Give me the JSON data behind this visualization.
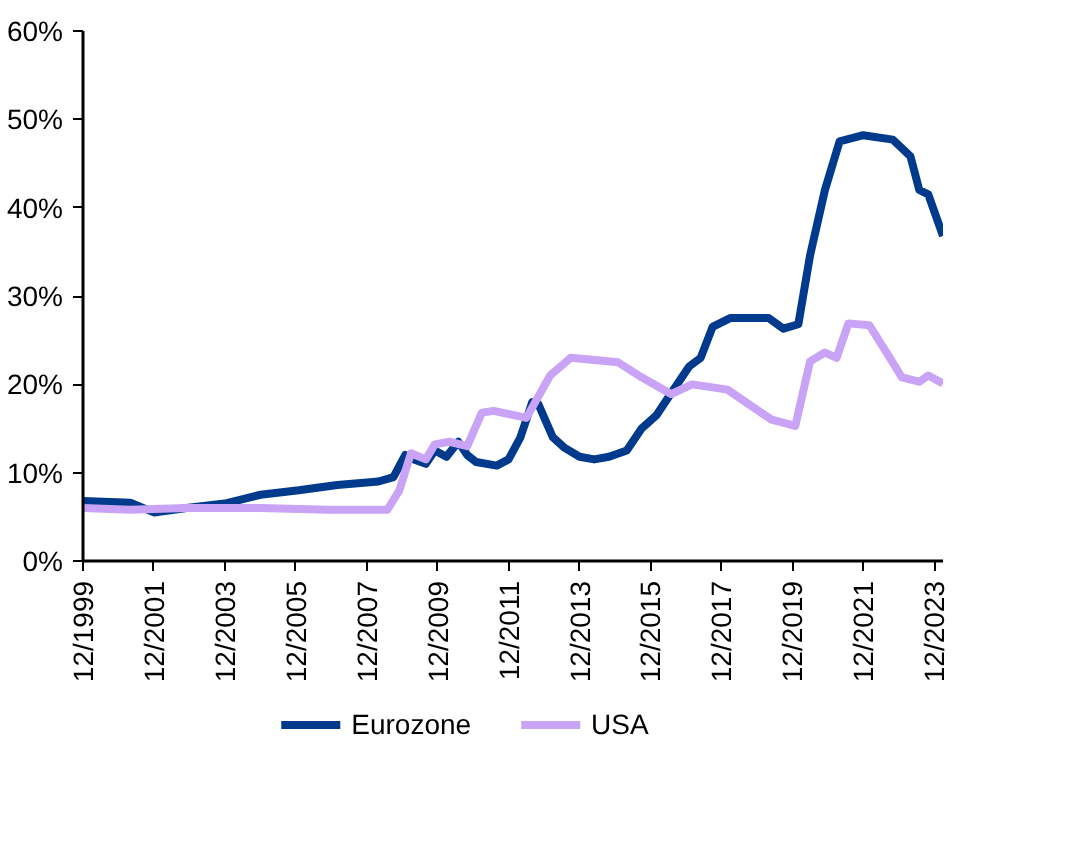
{
  "chart_data": {
    "type": "line",
    "xlim": [
      "1999-12",
      "2024-03"
    ],
    "xticks": [
      {
        "value": "1999-12",
        "label": "12/1999"
      },
      {
        "value": "2001-12",
        "label": "12/2001"
      },
      {
        "value": "2003-12",
        "label": "12/2003"
      },
      {
        "value": "2005-12",
        "label": "12/2005"
      },
      {
        "value": "2007-12",
        "label": "12/2007"
      },
      {
        "value": "2009-12",
        "label": "12/2009"
      },
      {
        "value": "2011-12",
        "label": "12/2011"
      },
      {
        "value": "2013-12",
        "label": "12/2013"
      },
      {
        "value": "2015-12",
        "label": "12/2015"
      },
      {
        "value": "2017-12",
        "label": "12/2017"
      },
      {
        "value": "2019-12",
        "label": "12/2019"
      },
      {
        "value": "2021-12",
        "label": "12/2021"
      },
      {
        "value": "2023-12",
        "label": "12/2023"
      }
    ],
    "ylim": [
      0,
      60
    ],
    "yticks": [
      {
        "value": 0,
        "label": "0%"
      },
      {
        "value": 10,
        "label": "10%"
      },
      {
        "value": 20,
        "label": "20%"
      },
      {
        "value": 30,
        "label": "30%"
      },
      {
        "value": 40,
        "label": "40%"
      },
      {
        "value": 50,
        "label": "50%"
      },
      {
        "value": 60,
        "label": "60%"
      }
    ],
    "grid": false,
    "legend": "bottom",
    "marker": "none",
    "line_style": "solid",
    "series": [
      {
        "name": "Eurozone",
        "color": "#003a8c",
        "x": [
          "1999-12",
          "2001-04",
          "2001-12",
          "2002-11",
          "2003-12",
          "2004-12",
          "2006-01",
          "2007-02",
          "2008-04",
          "2008-09",
          "2009-01",
          "2009-04",
          "2009-08",
          "2009-11",
          "2010-03",
          "2010-07",
          "2010-10",
          "2011-01",
          "2011-08",
          "2011-12",
          "2012-04",
          "2012-08",
          "2012-10",
          "2013-03",
          "2013-07",
          "2013-12",
          "2014-05",
          "2014-10",
          "2015-04",
          "2015-09",
          "2016-02",
          "2016-07",
          "2017-01",
          "2017-05",
          "2017-09",
          "2018-03",
          "2019-04",
          "2019-09",
          "2020-02",
          "2020-06",
          "2020-11",
          "2021-04",
          "2021-12",
          "2022-10",
          "2023-04",
          "2023-07",
          "2023-10",
          "2024-03"
        ],
        "values": [
          6.8,
          6.6,
          5.5,
          6.0,
          6.5,
          7.5,
          8.0,
          8.6,
          9.0,
          9.5,
          12.0,
          11.5,
          11.0,
          12.5,
          11.8,
          13.5,
          12.0,
          11.2,
          10.8,
          11.5,
          14.0,
          18.0,
          17.8,
          14.0,
          12.8,
          11.8,
          11.5,
          11.8,
          12.5,
          15.0,
          16.5,
          19.0,
          22.0,
          23.0,
          26.5,
          27.5,
          27.5,
          26.3,
          26.8,
          34.6,
          42.0,
          47.5,
          48.2,
          47.7,
          45.8,
          42.0,
          41.5,
          36.8
        ]
      },
      {
        "name": "USA",
        "color": "#c9a3f5",
        "x": [
          "1999-12",
          "2001-04",
          "2002-11",
          "2004-12",
          "2006-11",
          "2008-07",
          "2008-11",
          "2009-03",
          "2009-08",
          "2009-11",
          "2010-04",
          "2010-10",
          "2011-03",
          "2011-07",
          "2012-06",
          "2013-02",
          "2013-09",
          "2015-01",
          "2015-09",
          "2016-07",
          "2017-02",
          "2018-02",
          "2019-05",
          "2020-01",
          "2020-06",
          "2020-11",
          "2021-03",
          "2021-07",
          "2022-02",
          "2022-09",
          "2023-01",
          "2023-07",
          "2023-10",
          "2024-03"
        ],
        "values": [
          6.0,
          5.8,
          6.0,
          6.0,
          5.8,
          5.8,
          8.0,
          12.2,
          11.5,
          13.2,
          13.5,
          13.0,
          16.8,
          17.0,
          16.2,
          21.0,
          23.0,
          22.5,
          20.8,
          18.9,
          20.0,
          19.4,
          16.0,
          15.3,
          22.6,
          23.6,
          23.0,
          26.9,
          26.7,
          23.0,
          20.8,
          20.3,
          21.0,
          20.1
        ]
      }
    ]
  }
}
